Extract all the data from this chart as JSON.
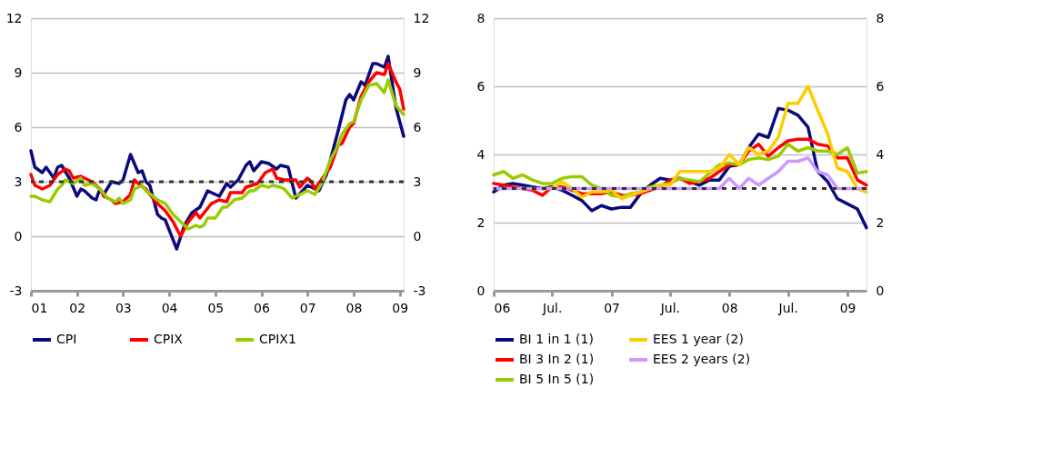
{
  "chart_data": [
    {
      "type": "line",
      "xlim": [
        "2001-01",
        "2009-02"
      ],
      "xticks": [
        {
          "value": "2001-01",
          "label": "01"
        },
        {
          "value": "2002-01",
          "label": "02"
        },
        {
          "value": "2003-01",
          "label": "03"
        },
        {
          "value": "2004-01",
          "label": "04"
        },
        {
          "value": "2005-01",
          "label": "05"
        },
        {
          "value": "2006-01",
          "label": "06"
        },
        {
          "value": "2007-01",
          "label": "07"
        },
        {
          "value": "2008-01",
          "label": "08"
        },
        {
          "value": "2009-01",
          "label": "09"
        }
      ],
      "ylim": [
        -3,
        12
      ],
      "yticks": [
        -3,
        0,
        3,
        6,
        9,
        12
      ],
      "y2lim": [
        -3,
        12
      ],
      "y2ticks": [
        -3,
        0,
        3,
        6,
        9,
        12
      ],
      "grid": "y",
      "legend": "bottom",
      "line_style": "solid",
      "ref_lines": [
        {
          "axis": "y",
          "value": 3,
          "color": "#333333",
          "line_style": "dashed"
        }
      ],
      "series": [
        {
          "name": "CPI",
          "color": "#0a0a7c",
          "x": [
            "2001-01",
            "2001-02",
            "2001-04",
            "2001-05",
            "2001-06",
            "2001-07",
            "2001-08",
            "2001-09",
            "2001-11",
            "2002-01",
            "2002-02",
            "2002-03",
            "2002-05",
            "2002-06",
            "2002-07",
            "2002-08",
            "2002-10",
            "2002-12",
            "2003-01",
            "2003-03",
            "2003-05",
            "2003-06",
            "2003-07",
            "2003-08",
            "2003-10",
            "2003-11",
            "2003-12",
            "2004-03",
            "2004-05",
            "2004-07",
            "2004-09",
            "2004-11",
            "2005-02",
            "2005-04",
            "2005-05",
            "2005-07",
            "2005-09",
            "2005-10",
            "2005-11",
            "2006-01",
            "2006-03",
            "2006-05",
            "2006-06",
            "2006-08",
            "2006-10",
            "2007-01",
            "2007-04",
            "2007-06",
            "2007-09",
            "2007-11",
            "2007-12",
            "2008-01",
            "2008-03",
            "2008-04",
            "2008-06",
            "2008-07",
            "2008-09",
            "2008-10",
            "2008-12",
            "2009-02"
          ],
          "values": [
            4.7,
            3.8,
            3.5,
            3.8,
            3.5,
            3.2,
            3.8,
            3.9,
            3.2,
            2.2,
            2.6,
            2.5,
            2.1,
            2.0,
            2.6,
            2.3,
            3.0,
            2.9,
            3.1,
            4.5,
            3.5,
            3.6,
            3.0,
            2.8,
            1.2,
            1.0,
            0.9,
            -0.7,
            0.6,
            1.3,
            1.6,
            2.5,
            2.2,
            2.9,
            2.7,
            3.1,
            3.9,
            4.1,
            3.6,
            4.1,
            4.0,
            3.7,
            3.9,
            3.8,
            2.1,
            2.8,
            2.5,
            3.4,
            5.8,
            7.5,
            7.8,
            7.5,
            8.5,
            8.3,
            9.5,
            9.5,
            9.3,
            9.9,
            7.1,
            5.5
          ]
        },
        {
          "name": "CPIX",
          "color": "#ff0000",
          "x": [
            "2001-01",
            "2001-02",
            "2001-04",
            "2001-05",
            "2001-06",
            "2001-08",
            "2001-10",
            "2001-11",
            "2001-12",
            "2002-02",
            "2002-03",
            "2002-05",
            "2002-07",
            "2002-08",
            "2002-10",
            "2002-11",
            "2003-01",
            "2003-03",
            "2003-04",
            "2003-05",
            "2003-07",
            "2003-08",
            "2003-10",
            "2003-12",
            "2004-02",
            "2004-04",
            "2004-06",
            "2004-08",
            "2004-09",
            "2004-12",
            "2005-02",
            "2005-04",
            "2005-05",
            "2005-08",
            "2005-09",
            "2005-12",
            "2006-02",
            "2006-04",
            "2006-05",
            "2006-07",
            "2006-08",
            "2006-10",
            "2006-11",
            "2007-01",
            "2007-02",
            "2007-03",
            "2007-05",
            "2007-07",
            "2007-09",
            "2007-10",
            "2007-12",
            "2008-01",
            "2008-03",
            "2008-05",
            "2008-07",
            "2008-09",
            "2008-10",
            "2008-12",
            "2009-01",
            "2009-02"
          ],
          "values": [
            3.4,
            2.8,
            2.6,
            2.7,
            2.8,
            3.4,
            3.7,
            3.6,
            3.2,
            3.3,
            3.2,
            3.0,
            2.6,
            2.2,
            2.0,
            1.8,
            1.9,
            2.3,
            3.1,
            2.9,
            2.6,
            2.3,
            1.8,
            1.4,
            0.8,
            0.0,
            0.8,
            1.3,
            1.0,
            1.8,
            2.0,
            1.9,
            2.4,
            2.4,
            2.7,
            2.9,
            3.5,
            3.7,
            3.2,
            3.1,
            3.1,
            3.1,
            2.7,
            3.2,
            3.0,
            2.6,
            3.2,
            3.8,
            5.0,
            5.1,
            6.0,
            6.2,
            7.7,
            8.5,
            9.0,
            8.9,
            9.5,
            8.5,
            8.1,
            7.0
          ]
        },
        {
          "name": "CPIX1",
          "color": "#99cc00",
          "x": [
            "2001-01",
            "2001-02",
            "2001-04",
            "2001-06",
            "2001-08",
            "2001-09",
            "2001-10",
            "2001-12",
            "2002-02",
            "2002-03",
            "2002-05",
            "2002-07",
            "2002-09",
            "2002-11",
            "2002-12",
            "2003-01",
            "2003-03",
            "2003-04",
            "2003-06",
            "2003-07",
            "2003-10",
            "2003-12",
            "2004-02",
            "2004-04",
            "2004-06",
            "2004-08",
            "2004-09",
            "2004-10",
            "2004-11",
            "2005-01",
            "2005-03",
            "2005-04",
            "2005-06",
            "2005-08",
            "2005-10",
            "2005-11",
            "2006-01",
            "2006-03",
            "2006-04",
            "2006-06",
            "2006-07",
            "2006-09",
            "2006-11",
            "2007-01",
            "2007-03",
            "2007-05",
            "2007-07",
            "2007-09",
            "2007-10",
            "2007-12",
            "2008-01",
            "2008-03",
            "2008-05",
            "2008-07",
            "2008-09",
            "2008-10",
            "2008-12",
            "2009-02"
          ],
          "values": [
            2.2,
            2.2,
            2.0,
            1.9,
            2.6,
            2.8,
            3.1,
            2.9,
            3.2,
            2.8,
            2.9,
            2.6,
            2.1,
            1.9,
            2.1,
            1.8,
            2.0,
            2.6,
            2.8,
            2.5,
            2.0,
            1.8,
            1.2,
            0.8,
            0.4,
            0.6,
            0.5,
            0.6,
            1.0,
            1.0,
            1.6,
            1.6,
            2.0,
            2.1,
            2.5,
            2.5,
            2.8,
            2.7,
            2.8,
            2.7,
            2.6,
            2.1,
            2.3,
            2.5,
            2.3,
            3.0,
            4.2,
            5.0,
            5.6,
            6.2,
            6.3,
            7.5,
            8.3,
            8.4,
            7.9,
            8.6,
            7.2,
            6.7
          ]
        }
      ]
    },
    {
      "type": "line",
      "xlim": [
        "2006-01",
        "2009-03"
      ],
      "xticks": [
        {
          "value": "2006-01",
          "label": "06"
        },
        {
          "value": "2006-07",
          "label": "Jul."
        },
        {
          "value": "2007-01",
          "label": "07"
        },
        {
          "value": "2007-07",
          "label": "Jul."
        },
        {
          "value": "2008-01",
          "label": "08"
        },
        {
          "value": "2008-07",
          "label": "Jul."
        },
        {
          "value": "2009-01",
          "label": "09"
        }
      ],
      "ylim": [
        0,
        8
      ],
      "yticks": [
        0,
        2,
        4,
        6,
        8
      ],
      "y2lim": [
        0,
        8
      ],
      "y2ticks": [
        0,
        2,
        4,
        6,
        8
      ],
      "grid": "y",
      "legend": "bottom",
      "line_style": "solid",
      "ref_lines": [
        {
          "axis": "y",
          "value": 3,
          "color": "#333333",
          "line_style": "dashed"
        }
      ],
      "x": [
        "2006-01",
        "2006-02",
        "2006-03",
        "2006-04",
        "2006-05",
        "2006-06",
        "2006-07",
        "2006-08",
        "2006-09",
        "2006-10",
        "2006-11",
        "2006-12",
        "2007-01",
        "2007-02",
        "2007-03",
        "2007-04",
        "2007-05",
        "2007-06",
        "2007-07",
        "2007-08",
        "2007-09",
        "2007-10",
        "2007-11",
        "2007-12",
        "2008-01",
        "2008-02",
        "2008-03",
        "2008-04",
        "2008-05",
        "2008-06",
        "2008-07",
        "2008-08",
        "2008-09",
        "2008-10",
        "2008-11",
        "2008-12",
        "2009-01",
        "2009-02",
        "2009-03"
      ],
      "series": [
        {
          "name": "BI 1 in 1 (1)",
          "color": "#0a0a7c",
          "values": [
            2.9,
            3.1,
            3.15,
            3.1,
            3.05,
            3.0,
            3.05,
            2.95,
            2.8,
            2.65,
            2.35,
            2.5,
            2.4,
            2.45,
            2.45,
            2.85,
            3.1,
            3.3,
            3.25,
            3.3,
            3.2,
            3.1,
            3.25,
            3.25,
            3.65,
            3.7,
            4.2,
            4.6,
            4.5,
            5.35,
            5.3,
            5.15,
            4.8,
            3.5,
            3.2,
            2.7,
            2.55,
            2.4,
            1.85
          ]
        },
        {
          "name": "BI 3 In 2 (1)",
          "color": "#ff0000",
          "values": [
            3.15,
            3.1,
            3.05,
            3.0,
            2.95,
            2.8,
            3.05,
            3.05,
            2.95,
            2.85,
            2.85,
            2.85,
            2.9,
            2.8,
            2.8,
            2.85,
            2.95,
            3.05,
            3.25,
            3.3,
            3.15,
            3.2,
            3.3,
            3.5,
            3.7,
            3.7,
            4.1,
            4.3,
            3.95,
            4.2,
            4.4,
            4.45,
            4.45,
            4.3,
            4.25,
            3.9,
            3.9,
            3.25,
            3.1
          ]
        },
        {
          "name": "BI 5 In 5 (1)",
          "color": "#99cc00",
          "values": [
            3.4,
            3.5,
            3.3,
            3.4,
            3.25,
            3.15,
            3.15,
            3.3,
            3.35,
            3.35,
            3.1,
            3.0,
            2.8,
            2.75,
            2.85,
            2.9,
            3.05,
            3.1,
            3.15,
            3.3,
            3.25,
            3.2,
            3.45,
            3.7,
            3.75,
            3.7,
            3.85,
            3.9,
            3.85,
            3.95,
            4.3,
            4.1,
            4.2,
            4.1,
            4.1,
            4.0,
            4.2,
            3.45,
            3.5
          ]
        },
        {
          "name": "EES 1 year (2)",
          "color": "#ffcc00",
          "values": [
            null,
            null,
            null,
            null,
            null,
            3.0,
            3.0,
            3.2,
            3.0,
            2.75,
            2.9,
            2.9,
            2.95,
            2.7,
            2.8,
            2.9,
            3.0,
            3.1,
            3.1,
            3.5,
            3.5,
            3.5,
            3.5,
            3.6,
            4.0,
            3.7,
            4.2,
            4.0,
            4.1,
            4.5,
            5.5,
            5.5,
            6.0,
            5.3,
            4.6,
            3.6,
            3.5,
            3.0,
            2.9
          ]
        },
        {
          "name": "EES 2 years (2)",
          "color": "#cc99ff",
          "values": [
            3.0,
            3.0,
            3.0,
            3.0,
            3.0,
            3.0,
            3.0,
            3.0,
            3.0,
            3.0,
            3.0,
            3.0,
            3.0,
            3.0,
            3.0,
            3.0,
            3.0,
            3.0,
            3.0,
            3.0,
            3.0,
            3.0,
            3.0,
            3.0,
            3.3,
            3.0,
            3.3,
            3.1,
            3.3,
            3.5,
            3.8,
            3.8,
            3.9,
            3.5,
            3.4,
            3.0,
            3.0,
            3.0,
            3.0
          ]
        }
      ]
    }
  ]
}
